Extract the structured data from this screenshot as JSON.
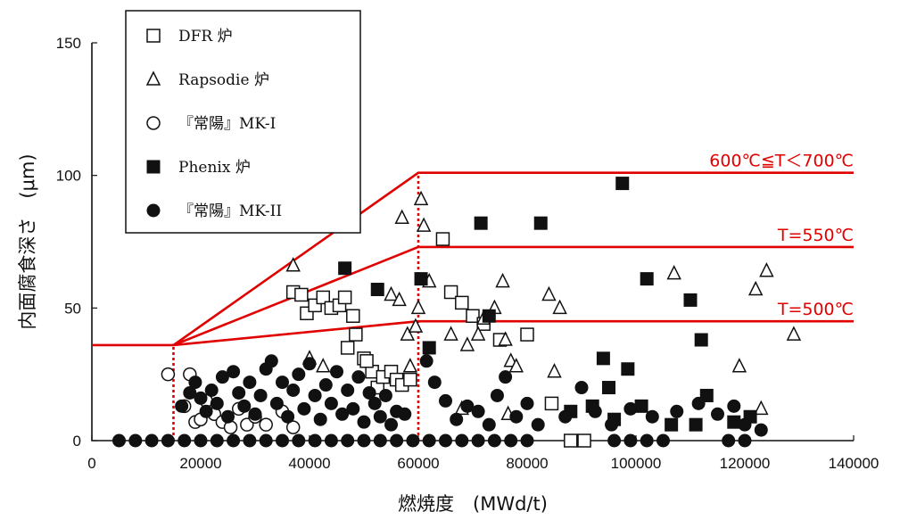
{
  "chart_data": {
    "type": "scatter",
    "xlabel": "燃焼度　(MWd/t)",
    "ylabel": "内面腐食深さ　(μm)",
    "xlim": [
      0,
      140000
    ],
    "ylim": [
      0,
      150
    ],
    "x_ticks": [
      "0",
      "20000",
      "40000",
      "60000",
      "80000",
      "100000",
      "120000",
      "140000"
    ],
    "y_ticks": [
      "0",
      "50",
      "100",
      "150"
    ],
    "grid": false,
    "legend_position": "top-left",
    "series": [
      {
        "name": "DFR 炉",
        "marker": "open-square",
        "points": [
          [
            37000,
            56
          ],
          [
            38500,
            55
          ],
          [
            39500,
            48
          ],
          [
            41000,
            51
          ],
          [
            42500,
            54
          ],
          [
            44000,
            50
          ],
          [
            45500,
            51
          ],
          [
            46500,
            54
          ],
          [
            48000,
            47
          ],
          [
            47000,
            35
          ],
          [
            48500,
            40
          ],
          [
            50000,
            31
          ],
          [
            51500,
            26
          ],
          [
            52500,
            20
          ],
          [
            53500,
            24
          ],
          [
            55000,
            26
          ],
          [
            56000,
            23
          ],
          [
            57000,
            21
          ],
          [
            58500,
            23
          ],
          [
            50500,
            30
          ],
          [
            64500,
            76
          ],
          [
            66000,
            56
          ],
          [
            68000,
            52
          ],
          [
            70000,
            47
          ],
          [
            72000,
            44
          ],
          [
            75000,
            38
          ],
          [
            80000,
            40
          ],
          [
            84500,
            14
          ],
          [
            88000,
            0
          ],
          [
            90500,
            0
          ]
        ]
      },
      {
        "name": "Rapsodie 炉",
        "marker": "open-triangle",
        "points": [
          [
            37000,
            66
          ],
          [
            40000,
            31
          ],
          [
            42500,
            28
          ],
          [
            55000,
            55
          ],
          [
            56500,
            53
          ],
          [
            57000,
            84
          ],
          [
            58000,
            40
          ],
          [
            58500,
            28
          ],
          [
            59500,
            43
          ],
          [
            60000,
            50
          ],
          [
            60500,
            91
          ],
          [
            61000,
            81
          ],
          [
            62000,
            60
          ],
          [
            66000,
            40
          ],
          [
            69000,
            36
          ],
          [
            71000,
            40
          ],
          [
            72000,
            46
          ],
          [
            74000,
            50
          ],
          [
            75500,
            60
          ],
          [
            76000,
            38
          ],
          [
            77000,
            30
          ],
          [
            78000,
            28
          ],
          [
            76500,
            10
          ],
          [
            84000,
            55
          ],
          [
            85000,
            26
          ],
          [
            86000,
            50
          ],
          [
            68000,
            12
          ],
          [
            107000,
            63
          ],
          [
            119000,
            28
          ],
          [
            122000,
            57
          ],
          [
            123000,
            12
          ],
          [
            124000,
            64
          ],
          [
            129000,
            40
          ]
        ]
      },
      {
        "name": "『常陽』MK-I",
        "marker": "open-circle",
        "points": [
          [
            14000,
            25
          ],
          [
            17000,
            13
          ],
          [
            18000,
            25
          ],
          [
            19000,
            7
          ],
          [
            20000,
            8
          ],
          [
            21000,
            15
          ],
          [
            22500,
            10
          ],
          [
            24000,
            7
          ],
          [
            25500,
            5
          ],
          [
            27000,
            12
          ],
          [
            28500,
            6
          ],
          [
            30000,
            9
          ],
          [
            32000,
            6
          ],
          [
            35000,
            11
          ],
          [
            37000,
            5
          ]
        ]
      },
      {
        "name": "Phenix 炉",
        "marker": "filled-square",
        "points": [
          [
            46500,
            65
          ],
          [
            52500,
            57
          ],
          [
            60500,
            61
          ],
          [
            62000,
            35
          ],
          [
            71500,
            82
          ],
          [
            73000,
            47
          ],
          [
            82500,
            82
          ],
          [
            88000,
            11
          ],
          [
            92000,
            13
          ],
          [
            94000,
            31
          ],
          [
            95000,
            20
          ],
          [
            96000,
            8
          ],
          [
            97500,
            97
          ],
          [
            98500,
            27
          ],
          [
            101000,
            13
          ],
          [
            102000,
            61
          ],
          [
            106500,
            6
          ],
          [
            110000,
            53
          ],
          [
            111000,
            6
          ],
          [
            112000,
            38
          ],
          [
            113000,
            17
          ],
          [
            118000,
            7
          ],
          [
            121000,
            9
          ]
        ]
      },
      {
        "name": "『常陽』MK-II",
        "marker": "filled-circle",
        "points": [
          [
            16500,
            13
          ],
          [
            18000,
            18
          ],
          [
            19000,
            22
          ],
          [
            20000,
            16
          ],
          [
            21000,
            11
          ],
          [
            22000,
            19
          ],
          [
            23000,
            14
          ],
          [
            24000,
            24
          ],
          [
            25000,
            9
          ],
          [
            26000,
            26
          ],
          [
            27000,
            18
          ],
          [
            28000,
            13
          ],
          [
            29000,
            22
          ],
          [
            30000,
            10
          ],
          [
            31000,
            17
          ],
          [
            32000,
            27
          ],
          [
            33000,
            30
          ],
          [
            34000,
            14
          ],
          [
            35000,
            22
          ],
          [
            36000,
            9
          ],
          [
            37000,
            19
          ],
          [
            38000,
            25
          ],
          [
            39000,
            12
          ],
          [
            40000,
            29
          ],
          [
            41000,
            17
          ],
          [
            42000,
            8
          ],
          [
            43000,
            21
          ],
          [
            44000,
            14
          ],
          [
            45000,
            26
          ],
          [
            46000,
            10
          ],
          [
            47000,
            19
          ],
          [
            48000,
            12
          ],
          [
            49000,
            24
          ],
          [
            50000,
            7
          ],
          [
            51000,
            18
          ],
          [
            52000,
            14
          ],
          [
            53000,
            9
          ],
          [
            54000,
            17
          ],
          [
            55000,
            6
          ],
          [
            56000,
            11
          ],
          [
            57500,
            10
          ],
          [
            61500,
            30
          ],
          [
            63000,
            22
          ],
          [
            65000,
            15
          ],
          [
            67000,
            8
          ],
          [
            69000,
            13
          ],
          [
            71000,
            11
          ],
          [
            73000,
            6
          ],
          [
            74500,
            17
          ],
          [
            76000,
            24
          ],
          [
            78000,
            9
          ],
          [
            80000,
            14
          ],
          [
            82000,
            6
          ],
          [
            87000,
            9
          ],
          [
            90000,
            20
          ],
          [
            92500,
            11
          ],
          [
            95500,
            6
          ],
          [
            99000,
            12
          ],
          [
            103000,
            9
          ],
          [
            107500,
            11
          ],
          [
            111500,
            14
          ],
          [
            115000,
            10
          ],
          [
            118000,
            13
          ],
          [
            120000,
            6
          ],
          [
            123000,
            4
          ],
          [
            5000,
            0
          ],
          [
            8000,
            0
          ],
          [
            11000,
            0
          ],
          [
            14000,
            0
          ],
          [
            17000,
            0
          ],
          [
            20000,
            0
          ],
          [
            23000,
            0
          ],
          [
            26000,
            0
          ],
          [
            29000,
            0
          ],
          [
            32000,
            0
          ],
          [
            35000,
            0
          ],
          [
            38000,
            0
          ],
          [
            41000,
            0
          ],
          [
            44000,
            0
          ],
          [
            47000,
            0
          ],
          [
            50000,
            0
          ],
          [
            53000,
            0
          ],
          [
            56000,
            0
          ],
          [
            59000,
            0
          ],
          [
            62000,
            0
          ],
          [
            65000,
            0
          ],
          [
            68000,
            0
          ],
          [
            71000,
            0
          ],
          [
            74000,
            0
          ],
          [
            77000,
            0
          ],
          [
            80000,
            0
          ],
          [
            96000,
            0
          ],
          [
            99000,
            0
          ],
          [
            102000,
            0
          ],
          [
            105000,
            0
          ],
          [
            117000,
            0
          ],
          [
            120000,
            0
          ]
        ]
      }
    ],
    "annotation_lines": [
      {
        "label": "600℃≦T＜700℃",
        "points": [
          [
            0,
            36
          ],
          [
            15000,
            36
          ],
          [
            60000,
            101
          ],
          [
            140000,
            101
          ]
        ]
      },
      {
        "label": "T=550℃",
        "points": [
          [
            15000,
            36
          ],
          [
            60000,
            73
          ],
          [
            140000,
            73
          ]
        ]
      },
      {
        "label": "T=500℃",
        "points": [
          [
            15000,
            36
          ],
          [
            60000,
            45
          ],
          [
            140000,
            45
          ]
        ]
      }
    ],
    "vertical_dotted_lines": [
      {
        "x": 15000,
        "y_top": 36
      },
      {
        "x": 60000,
        "y_top": 101
      }
    ],
    "annotation_color": "#e00000"
  }
}
